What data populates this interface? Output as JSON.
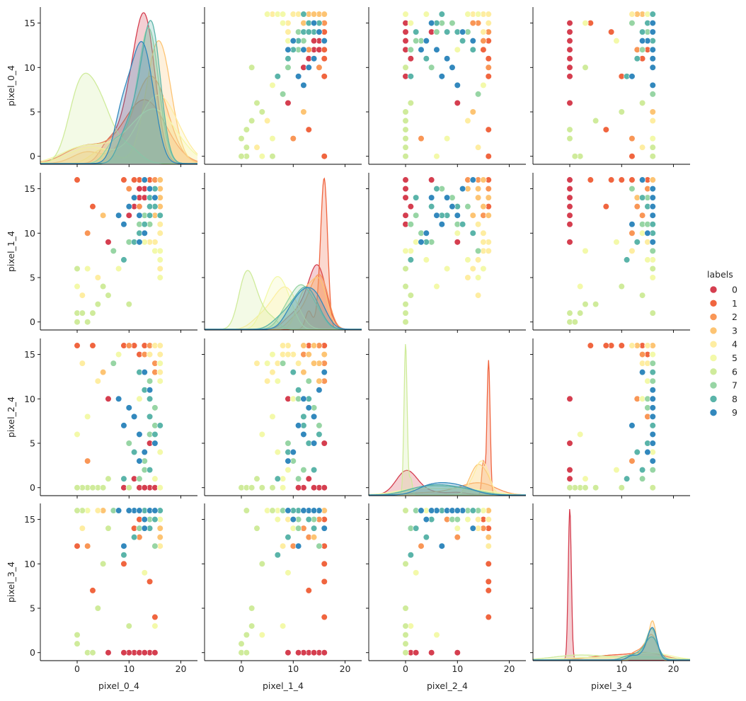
{
  "chart_data": {
    "type": "scatter",
    "subtype": "pairplot",
    "variables": [
      "pixel_0_4",
      "pixel_1_4",
      "pixel_2_4",
      "pixel_3_4"
    ],
    "hue": "labels",
    "diagonal": "kde",
    "xlim": [
      -7.1,
      23.2
    ],
    "ylim": [
      -0.9,
      16.8
    ],
    "x_ticks": [
      0,
      10,
      20
    ],
    "y_ticks": [
      0,
      5,
      10,
      15
    ],
    "grid": false,
    "legend": {
      "title": "labels",
      "placement": "right",
      "entries": [
        "0",
        "1",
        "2",
        "3",
        "4",
        "5",
        "6",
        "7",
        "8",
        "9"
      ]
    },
    "palette": [
      "#d53e4f",
      "#f0653f",
      "#f99656",
      "#fdc473",
      "#feeda1",
      "#f3f9a9",
      "#cfeb9b",
      "#97d5a4",
      "#5ab4a9",
      "#3288bd"
    ],
    "rows": [
      [
        12,
        14,
        0,
        0,
        0
      ],
      [
        13,
        15,
        0,
        0,
        0
      ],
      [
        11,
        13,
        1,
        0,
        0
      ],
      [
        14,
        15,
        0,
        0,
        0
      ],
      [
        10,
        12,
        0,
        0,
        0
      ],
      [
        13,
        14,
        2,
        0,
        0
      ],
      [
        12,
        15,
        0,
        0,
        0
      ],
      [
        9,
        11,
        0,
        0,
        0
      ],
      [
        14,
        16,
        5,
        0,
        0
      ],
      [
        13,
        14,
        0,
        0,
        0
      ],
      [
        6,
        9,
        10,
        0,
        0
      ],
      [
        15,
        16,
        0,
        0,
        0
      ],
      [
        14,
        16,
        16,
        8,
        1
      ],
      [
        13,
        16,
        16,
        16,
        1
      ],
      [
        0,
        16,
        16,
        12,
        1
      ],
      [
        12,
        16,
        15,
        15,
        1
      ],
      [
        15,
        16,
        16,
        4,
        1
      ],
      [
        11,
        16,
        16,
        14,
        1
      ],
      [
        16,
        15,
        16,
        16,
        1
      ],
      [
        9,
        16,
        16,
        10,
        1
      ],
      [
        3,
        13,
        16,
        7,
        1
      ],
      [
        13,
        16,
        15,
        16,
        1
      ],
      [
        15,
        14,
        14,
        16,
        2
      ],
      [
        16,
        16,
        12,
        16,
        2
      ],
      [
        13,
        12,
        15,
        14,
        2
      ],
      [
        14,
        15,
        16,
        15,
        2
      ],
      [
        12,
        13,
        10,
        13,
        2
      ],
      [
        16,
        16,
        14,
        16,
        2
      ],
      [
        2,
        10,
        3,
        12,
        2
      ],
      [
        15,
        16,
        13,
        16,
        2
      ],
      [
        14,
        14,
        8,
        15,
        2
      ],
      [
        10,
        15,
        16,
        16,
        2
      ],
      [
        16,
        15,
        14,
        16,
        3
      ],
      [
        16,
        13,
        15,
        16,
        3
      ],
      [
        16,
        16,
        13,
        14,
        3
      ],
      [
        15,
        12,
        16,
        16,
        3
      ],
      [
        16,
        14,
        14,
        15,
        3
      ],
      [
        16,
        16,
        15,
        16,
        3
      ],
      [
        14,
        15,
        12,
        16,
        3
      ],
      [
        16,
        11,
        14,
        16,
        3
      ],
      [
        16,
        14,
        16,
        13,
        3
      ],
      [
        5,
        12,
        13,
        16,
        3
      ],
      [
        16,
        8,
        15,
        16,
        4
      ],
      [
        16,
        7,
        14,
        16,
        4
      ],
      [
        15,
        9,
        16,
        15,
        4
      ],
      [
        16,
        6,
        13,
        16,
        4
      ],
      [
        1,
        3,
        14,
        14,
        4
      ],
      [
        16,
        10,
        15,
        16,
        4
      ],
      [
        4,
        5,
        12,
        16,
        4
      ],
      [
        16,
        8,
        16,
        12,
        4
      ],
      [
        14,
        9,
        15,
        16,
        4
      ],
      [
        16,
        11,
        14,
        15,
        4
      ],
      [
        16,
        7,
        4,
        16,
        5
      ],
      [
        15,
        8,
        1,
        3,
        5
      ],
      [
        2,
        6,
        8,
        16,
        5
      ],
      [
        16,
        7,
        12,
        15,
        5
      ],
      [
        13,
        9,
        2,
        9,
        5
      ],
      [
        16,
        5,
        14,
        16,
        5
      ],
      [
        0,
        4,
        6,
        2,
        5
      ],
      [
        16,
        8,
        0,
        16,
        5
      ],
      [
        12,
        10,
        10,
        14,
        5
      ],
      [
        8,
        6,
        15,
        16,
        5
      ],
      [
        0,
        1,
        0,
        2,
        6
      ],
      [
        2,
        0,
        0,
        0,
        6
      ],
      [
        4,
        2,
        0,
        5,
        6
      ],
      [
        1,
        1,
        0,
        16,
        6
      ],
      [
        0,
        0,
        0,
        1,
        6
      ],
      [
        6,
        3,
        1,
        14,
        6
      ],
      [
        3,
        1,
        0,
        0,
        6
      ],
      [
        5,
        4,
        0,
        10,
        6
      ],
      [
        10,
        2,
        0,
        3,
        6
      ],
      [
        0,
        6,
        0,
        16,
        6
      ],
      [
        14,
        12,
        6,
        16,
        7
      ],
      [
        13,
        10,
        3,
        16,
        7
      ],
      [
        15,
        14,
        9,
        15,
        7
      ],
      [
        12,
        11,
        1,
        14,
        7
      ],
      [
        14,
        13,
        12,
        16,
        7
      ],
      [
        10,
        9,
        5,
        16,
        7
      ],
      [
        15,
        15,
        7,
        12,
        7
      ],
      [
        13,
        12,
        2,
        16,
        7
      ],
      [
        7,
        8,
        14,
        16,
        7
      ],
      [
        14,
        11,
        10,
        15,
        7
      ],
      [
        14,
        12,
        8,
        16,
        8
      ],
      [
        15,
        13,
        5,
        15,
        8
      ],
      [
        13,
        11,
        11,
        16,
        8
      ],
      [
        14,
        14,
        2,
        14,
        8
      ],
      [
        12,
        10,
        13,
        16,
        8
      ],
      [
        16,
        12,
        7,
        16,
        8
      ],
      [
        11,
        9,
        4,
        13,
        8
      ],
      [
        14,
        13,
        10,
        16,
        8
      ],
      [
        15,
        15,
        6,
        16,
        8
      ],
      [
        9,
        7,
        1,
        11,
        8
      ],
      [
        12,
        12,
        6,
        16,
        9
      ],
      [
        11,
        14,
        8,
        16,
        9
      ],
      [
        13,
        10,
        4,
        15,
        9
      ],
      [
        10,
        13,
        9,
        16,
        9
      ],
      [
        14,
        15,
        11,
        16,
        9
      ],
      [
        9,
        11,
        7,
        12,
        9
      ],
      [
        12,
        9,
        3,
        16,
        9
      ],
      [
        13,
        16,
        13,
        14,
        9
      ],
      [
        8,
        12,
        10,
        16,
        9
      ],
      [
        15,
        14,
        5,
        16,
        9
      ]
    ]
  }
}
